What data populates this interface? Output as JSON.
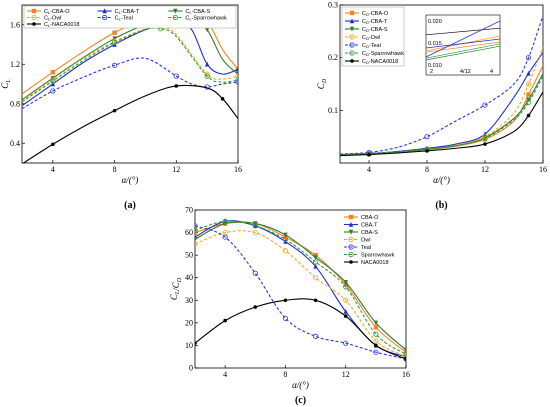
{
  "chart_data": [
    {
      "panel": "(a)",
      "type": "line",
      "xlabel": "α/(°)",
      "ylabel": "C_L",
      "xlim": [
        2,
        16
      ],
      "ylim": [
        0.2,
        1.8
      ],
      "xticks": [
        4,
        8,
        12,
        16
      ],
      "yticks": [
        0.4,
        0.8,
        1.2,
        1.6
      ],
      "legend": "top",
      "series": [
        {
          "name": "C_L-CBA-O",
          "color": "#f5821f",
          "dash": "",
          "marker": "square",
          "x": [
            2,
            4,
            6,
            8,
            10,
            12,
            13,
            14,
            15,
            16
          ],
          "y": [
            0.9,
            1.12,
            1.33,
            1.52,
            1.66,
            1.73,
            1.72,
            1.64,
            1.35,
            1.15
          ]
        },
        {
          "name": "C_L-CBA-T",
          "color": "#1f2fc8",
          "dash": "",
          "marker": "triangle",
          "x": [
            2,
            4,
            6,
            8,
            10,
            12,
            13,
            14,
            15,
            16
          ],
          "y": [
            0.78,
            1.0,
            1.22,
            1.4,
            1.55,
            1.63,
            1.55,
            1.2,
            1.1,
            1.15
          ]
        },
        {
          "name": "C_L-CBA-S",
          "color": "#2e7d32",
          "dash": "",
          "marker": "triangle-down",
          "x": [
            2,
            4,
            6,
            8,
            10,
            12,
            13,
            14,
            15,
            16
          ],
          "y": [
            0.84,
            1.06,
            1.27,
            1.46,
            1.6,
            1.68,
            1.66,
            1.55,
            1.25,
            1.1
          ]
        },
        {
          "name": "C_L-Owl",
          "color": "#f5a623",
          "dash": "3,2",
          "marker": "circle",
          "x": [
            2,
            4,
            6,
            8,
            10,
            11,
            12,
            14,
            15,
            16
          ],
          "y": [
            0.83,
            1.05,
            1.26,
            1.43,
            1.56,
            1.58,
            1.5,
            1.1,
            1.05,
            1.08
          ]
        },
        {
          "name": "C_L-Teal",
          "color": "#2b35e0",
          "dash": "3,2",
          "marker": "circle",
          "x": [
            2,
            4,
            6,
            8,
            10,
            12,
            13,
            14,
            15,
            16
          ],
          "y": [
            0.75,
            0.93,
            1.07,
            1.19,
            1.26,
            1.08,
            1.0,
            0.97,
            1.0,
            1.02
          ]
        },
        {
          "name": "C_L-Sparrowhawk",
          "color": "#2e9b35",
          "dash": "3,2",
          "marker": "circle",
          "x": [
            2,
            4,
            6,
            8,
            10,
            11,
            12,
            14,
            15,
            16
          ],
          "y": [
            0.82,
            1.03,
            1.24,
            1.42,
            1.55,
            1.56,
            1.48,
            1.08,
            1.02,
            1.04
          ]
        },
        {
          "name": "C_L-NACA0018",
          "color": "#000000",
          "dash": "",
          "marker": "dot",
          "x": [
            2,
            4,
            6,
            8,
            10,
            12,
            14,
            15,
            16
          ],
          "y": [
            0.19,
            0.39,
            0.57,
            0.73,
            0.88,
            0.98,
            0.96,
            0.85,
            0.65
          ]
        }
      ]
    },
    {
      "panel": "(b)",
      "type": "line",
      "xlabel": "α/(°)",
      "ylabel": "C_D",
      "xlim": [
        2,
        16
      ],
      "ylim": [
        0,
        0.3
      ],
      "xticks": [
        4,
        8,
        12,
        16
      ],
      "yticks": [
        0.1,
        0.2,
        0.3
      ],
      "legend": "top-left",
      "inset_ticks": {
        "x": [
          "2",
          "4/12",
          "4"
        ],
        "y": [
          "0.020",
          "0.015",
          "0.010"
        ]
      },
      "series": [
        {
          "name": "C_D-CBA-O",
          "color": "#f5821f",
          "dash": "",
          "marker": "square",
          "x": [
            2,
            4,
            6,
            8,
            10,
            12,
            14,
            15,
            16
          ],
          "y": [
            0.015,
            0.017,
            0.02,
            0.025,
            0.032,
            0.045,
            0.08,
            0.13,
            0.185
          ]
        },
        {
          "name": "C_D-CBA-T",
          "color": "#1f2fc8",
          "dash": "",
          "marker": "triangle",
          "x": [
            2,
            4,
            6,
            8,
            10,
            12,
            14,
            15,
            16
          ],
          "y": [
            0.016,
            0.018,
            0.022,
            0.028,
            0.036,
            0.055,
            0.125,
            0.17,
            0.21
          ]
        },
        {
          "name": "C_D-CBA-S",
          "color": "#2e7d32",
          "dash": "",
          "marker": "triangle-down",
          "x": [
            2,
            4,
            6,
            8,
            10,
            12,
            14,
            15,
            16
          ],
          "y": [
            0.015,
            0.017,
            0.021,
            0.026,
            0.033,
            0.048,
            0.085,
            0.12,
            0.17
          ]
        },
        {
          "name": "C_D-Owl",
          "color": "#f5a623",
          "dash": "3,2",
          "marker": "circle",
          "x": [
            2,
            4,
            6,
            8,
            10,
            12,
            14,
            15,
            16
          ],
          "y": [
            0.016,
            0.018,
            0.021,
            0.026,
            0.034,
            0.05,
            0.095,
            0.15,
            0.22
          ]
        },
        {
          "name": "C_D-Teal",
          "color": "#2b35e0",
          "dash": "3,2",
          "marker": "circle",
          "x": [
            2,
            4,
            6,
            8,
            10,
            12,
            14,
            15,
            16
          ],
          "y": [
            0.017,
            0.02,
            0.03,
            0.05,
            0.08,
            0.11,
            0.15,
            0.2,
            0.28
          ]
        },
        {
          "name": "C_D-Sparrowhawk",
          "color": "#2e9b35",
          "dash": "3,2",
          "marker": "circle",
          "x": [
            2,
            4,
            6,
            8,
            10,
            12,
            14,
            15,
            16
          ],
          "y": [
            0.015,
            0.017,
            0.021,
            0.026,
            0.033,
            0.047,
            0.082,
            0.115,
            0.165
          ]
        },
        {
          "name": "C_D-NACA0018",
          "color": "#000000",
          "dash": "",
          "marker": "dot",
          "x": [
            2,
            4,
            6,
            8,
            10,
            12,
            14,
            15,
            16
          ],
          "y": [
            0.014,
            0.016,
            0.019,
            0.023,
            0.028,
            0.036,
            0.06,
            0.09,
            0.135
          ]
        }
      ]
    },
    {
      "panel": "(c)",
      "type": "line",
      "xlabel": "α/(°)",
      "ylabel": "C_L/C_D",
      "xlim": [
        2,
        16
      ],
      "ylim": [
        0,
        70
      ],
      "xticks": [
        4,
        8,
        12,
        16
      ],
      "yticks": [
        0,
        10,
        20,
        30,
        40,
        50,
        60,
        70
      ],
      "legend": "top-right",
      "series": [
        {
          "name": "CBA-O",
          "color": "#f5821f",
          "dash": "",
          "marker": "square",
          "x": [
            2,
            4,
            6,
            8,
            10,
            12,
            14,
            16
          ],
          "y": [
            60,
            64,
            64,
            58,
            50,
            37,
            18,
            7
          ]
        },
        {
          "name": "CBA-T",
          "color": "#1f2fc8",
          "dash": "",
          "marker": "triangle",
          "x": [
            2,
            4,
            6,
            8,
            10,
            12,
            14,
            16
          ],
          "y": [
            58,
            65,
            63,
            56,
            45,
            25,
            10,
            5
          ]
        },
        {
          "name": "CBA-S",
          "color": "#2e7d32",
          "dash": "",
          "marker": "triangle-down",
          "x": [
            2,
            4,
            6,
            8,
            10,
            12,
            14,
            16
          ],
          "y": [
            57,
            64,
            64,
            59,
            49,
            38,
            20,
            8
          ]
        },
        {
          "name": "Owl",
          "color": "#f5a623",
          "dash": "3,2",
          "marker": "circle",
          "x": [
            2,
            4,
            6,
            8,
            10,
            12,
            14,
            16
          ],
          "y": [
            55,
            60,
            60,
            52,
            40,
            30,
            12,
            5
          ]
        },
        {
          "name": "Teal",
          "color": "#2b35e0",
          "dash": "3,2",
          "marker": "circle",
          "x": [
            2,
            4,
            6,
            8,
            10,
            12,
            14,
            16
          ],
          "y": [
            63,
            58,
            42,
            22,
            14,
            11,
            7,
            4
          ]
        },
        {
          "name": "Sparrowhawk",
          "color": "#2e9b35",
          "dash": "3,2",
          "marker": "circle",
          "x": [
            2,
            4,
            6,
            8,
            10,
            12,
            14,
            16
          ],
          "y": [
            61,
            65,
            63,
            57,
            47,
            36,
            15,
            6
          ]
        },
        {
          "name": "NACA0018",
          "color": "#000000",
          "dash": "",
          "marker": "dot",
          "x": [
            2,
            4,
            6,
            8,
            10,
            12,
            14,
            16
          ],
          "y": [
            11,
            21,
            27,
            30,
            30,
            23,
            10,
            4
          ]
        }
      ]
    }
  ]
}
